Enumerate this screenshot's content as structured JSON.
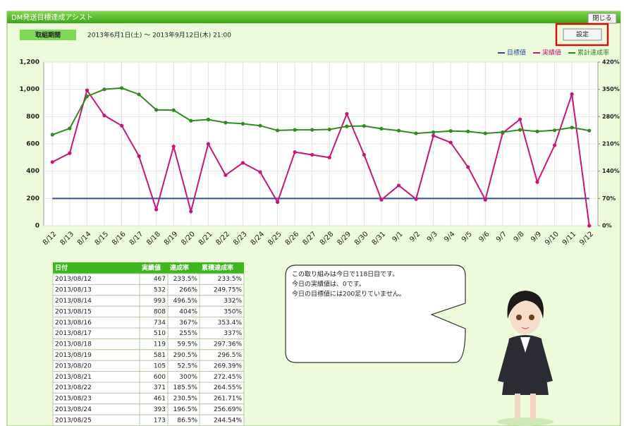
{
  "window": {
    "title": "DM発送目標達成アシスト",
    "close": "閉じる",
    "period_label": "取組期間",
    "period": "2013年6月1日(土) ～ 2013年9月12日(木) 21:00",
    "settings": "設定"
  },
  "chart_data": {
    "type": "line",
    "categories": [
      "8/12",
      "8/13",
      "8/14",
      "8/15",
      "8/16",
      "8/17",
      "8/18",
      "8/19",
      "8/20",
      "8/21",
      "8/22",
      "8/23",
      "8/24",
      "8/25",
      "8/26",
      "8/27",
      "8/28",
      "8/29",
      "8/30",
      "8/31",
      "9/1",
      "9/2",
      "9/3",
      "9/4",
      "9/5",
      "9/6",
      "9/7",
      "9/8",
      "9/9",
      "9/10",
      "9/11",
      "9/12"
    ],
    "series": [
      {
        "name": "目標値",
        "color": "#2e4e9e",
        "values": [
          200,
          200,
          200,
          200,
          200,
          200,
          200,
          200,
          200,
          200,
          200,
          200,
          200,
          200,
          200,
          200,
          200,
          200,
          200,
          200,
          200,
          200,
          200,
          200,
          200,
          200,
          200,
          200,
          200,
          200,
          200,
          200
        ]
      },
      {
        "name": "実績値",
        "color": "#c8157a",
        "values": [
          467,
          532,
          993,
          808,
          734,
          510,
          119,
          581,
          105,
          600,
          371,
          461,
          393,
          173,
          540,
          520,
          500,
          820,
          520,
          190,
          295,
          195,
          660,
          610,
          430,
          190,
          680,
          780,
          320,
          590,
          965,
          0
        ]
      },
      {
        "name": "累計達成率",
        "color": "#2e8b1e",
        "axis": "y2",
        "values": [
          233.5,
          249.75,
          332,
          350,
          353.4,
          337,
          297.36,
          296.5,
          269.39,
          272.45,
          264.55,
          261.71,
          256.69,
          244.54,
          246,
          246,
          247,
          255,
          256,
          249,
          244,
          237,
          240,
          243,
          242,
          237,
          240,
          246,
          242,
          245,
          252,
          244
        ]
      }
    ],
    "ylim": [
      0,
      1200
    ],
    "yticks": [
      0,
      200,
      400,
      600,
      800,
      {
        "value": 1000,
        "label": "1,000"
      },
      {
        "value": 1200,
        "label": "1,200"
      }
    ],
    "y2lim": [
      0,
      420
    ],
    "y2ticks": [
      {
        "value": 0,
        "label": "0%"
      },
      {
        "value": 70,
        "label": "70%"
      },
      {
        "value": 140,
        "label": "140%"
      },
      {
        "value": 210,
        "label": "210%"
      },
      {
        "value": 280,
        "label": "280%"
      },
      {
        "value": 350,
        "label": "350%"
      },
      {
        "value": 420,
        "label": "420%"
      }
    ],
    "grid": true,
    "legend": "top-right"
  },
  "table": {
    "header": [
      "日付",
      "実績値",
      "達成率",
      "累積達成率"
    ],
    "rows": [
      [
        "2013/08/12",
        "467",
        "233.5%",
        "233.5%"
      ],
      [
        "2013/08/13",
        "532",
        "266%",
        "249.75%"
      ],
      [
        "2013/08/14",
        "993",
        "496.5%",
        "332%"
      ],
      [
        "2013/08/15",
        "808",
        "404%",
        "350%"
      ],
      [
        "2013/08/16",
        "734",
        "367%",
        "353.4%"
      ],
      [
        "2013/08/17",
        "510",
        "255%",
        "337%"
      ],
      [
        "2013/08/18",
        "119",
        "59.5%",
        "297.36%"
      ],
      [
        "2013/08/19",
        "581",
        "290.5%",
        "296.5%"
      ],
      [
        "2013/08/20",
        "105",
        "52.5%",
        "269.39%"
      ],
      [
        "2013/08/21",
        "600",
        "300%",
        "272.45%"
      ],
      [
        "2013/08/22",
        "371",
        "185.5%",
        "264.55%"
      ],
      [
        "2013/08/23",
        "461",
        "230.5%",
        "261.71%"
      ],
      [
        "2013/08/24",
        "393",
        "196.5%",
        "256.69%"
      ],
      [
        "2013/08/25",
        "173",
        "86.5%",
        "244.54%"
      ]
    ]
  },
  "speech": {
    "lines": [
      "この取り組みは今日で118日目です。",
      "今日の実績値は、0です。",
      "今日の目標値には200足りていません。"
    ]
  }
}
